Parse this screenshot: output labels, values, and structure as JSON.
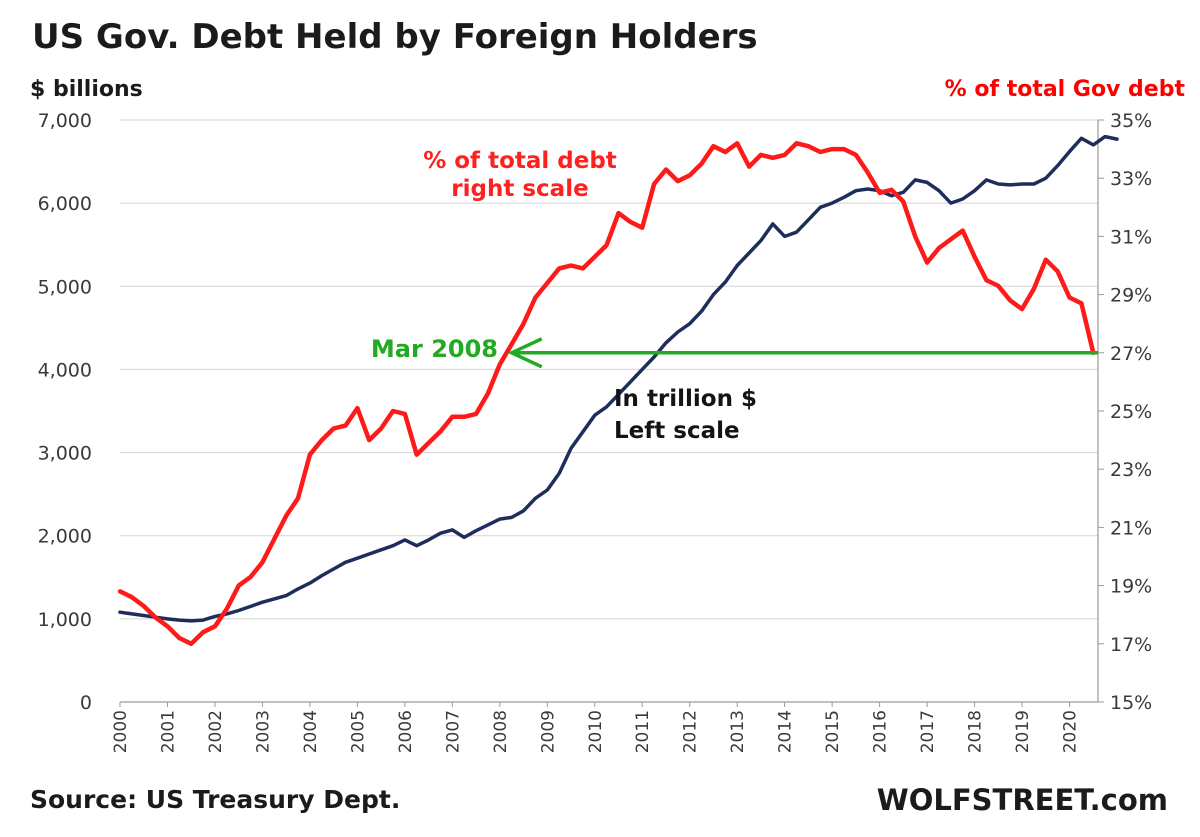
{
  "chart_data": {
    "type": "line",
    "title": "US Gov. Debt Held by Foreign Holders",
    "ylabel_left": "$ billions",
    "ylabel_right": "% of total Gov debt",
    "yticks_left": [
      "0",
      "1,000",
      "2,000",
      "3,000",
      "4,000",
      "5,000",
      "6,000",
      "7,000"
    ],
    "yticks_right": [
      "15%",
      "17%",
      "19%",
      "21%",
      "23%",
      "25%",
      "27%",
      "29%",
      "31%",
      "33%",
      "35%"
    ],
    "xticks": [
      "2000",
      "2001",
      "2002",
      "2003",
      "2004",
      "2005",
      "2006",
      "2007",
      "2008",
      "2009",
      "2010",
      "2011",
      "2012",
      "2013",
      "2014",
      "2015",
      "2016",
      "2017",
      "2018",
      "2019",
      "2020"
    ],
    "ylim_left": [
      0,
      7000
    ],
    "ylim_right": [
      15,
      35
    ],
    "xlim": [
      2000,
      2020.6
    ],
    "grid": "horizontal",
    "series": [
      {
        "axis": "left",
        "color": "#1f2d5c",
        "points": [
          [
            2000.0,
            1080
          ],
          [
            2000.25,
            1060
          ],
          [
            2000.5,
            1040
          ],
          [
            2000.75,
            1020
          ],
          [
            2001.0,
            1000
          ],
          [
            2001.25,
            985
          ],
          [
            2001.5,
            975
          ],
          [
            2001.75,
            985
          ],
          [
            2002.0,
            1030
          ],
          [
            2002.25,
            1060
          ],
          [
            2002.5,
            1100
          ],
          [
            2002.75,
            1150
          ],
          [
            2003.0,
            1200
          ],
          [
            2003.25,
            1240
          ],
          [
            2003.5,
            1280
          ],
          [
            2003.75,
            1360
          ],
          [
            2004.0,
            1430
          ],
          [
            2004.25,
            1520
          ],
          [
            2004.5,
            1600
          ],
          [
            2004.75,
            1680
          ],
          [
            2005.0,
            1730
          ],
          [
            2005.25,
            1780
          ],
          [
            2005.5,
            1830
          ],
          [
            2005.75,
            1880
          ],
          [
            2006.0,
            1950
          ],
          [
            2006.25,
            1880
          ],
          [
            2006.5,
            1950
          ],
          [
            2006.75,
            2030
          ],
          [
            2007.0,
            2070
          ],
          [
            2007.25,
            1980
          ],
          [
            2007.5,
            2060
          ],
          [
            2007.75,
            2130
          ],
          [
            2008.0,
            2200
          ],
          [
            2008.25,
            2220
          ],
          [
            2008.5,
            2300
          ],
          [
            2008.75,
            2450
          ],
          [
            2009.0,
            2550
          ],
          [
            2009.25,
            2750
          ],
          [
            2009.5,
            3050
          ],
          [
            2009.75,
            3250
          ],
          [
            2010.0,
            3450
          ],
          [
            2010.25,
            3550
          ],
          [
            2010.5,
            3700
          ],
          [
            2010.75,
            3850
          ],
          [
            2011.0,
            4000
          ],
          [
            2011.25,
            4150
          ],
          [
            2011.5,
            4320
          ],
          [
            2011.75,
            4450
          ],
          [
            2012.0,
            4550
          ],
          [
            2012.25,
            4700
          ],
          [
            2012.5,
            4900
          ],
          [
            2012.75,
            5050
          ],
          [
            2013.0,
            5250
          ],
          [
            2013.25,
            5400
          ],
          [
            2013.5,
            5550
          ],
          [
            2013.75,
            5750
          ],
          [
            2014.0,
            5600
          ],
          [
            2014.25,
            5650
          ],
          [
            2014.5,
            5800
          ],
          [
            2014.75,
            5950
          ],
          [
            2015.0,
            6000
          ],
          [
            2015.25,
            6070
          ],
          [
            2015.5,
            6150
          ],
          [
            2015.75,
            6170
          ],
          [
            2016.0,
            6150
          ],
          [
            2016.25,
            6090
          ],
          [
            2016.5,
            6130
          ],
          [
            2016.75,
            6280
          ],
          [
            2017.0,
            6250
          ],
          [
            2017.25,
            6150
          ],
          [
            2017.5,
            6000
          ],
          [
            2017.75,
            6050
          ],
          [
            2018.0,
            6150
          ],
          [
            2018.25,
            6280
          ],
          [
            2018.5,
            6230
          ],
          [
            2018.75,
            6220
          ],
          [
            2019.0,
            6230
          ],
          [
            2019.25,
            6230
          ],
          [
            2019.5,
            6300
          ],
          [
            2019.75,
            6450
          ],
          [
            2020.0,
            6620
          ],
          [
            2020.25,
            6780
          ],
          [
            2020.5,
            6700
          ],
          [
            2020.75,
            6800
          ],
          [
            2021.0,
            6770
          ]
        ]
      },
      {
        "axis": "right",
        "color": "#ff1a1a",
        "points": [
          [
            2000.0,
            18.8
          ],
          [
            2000.25,
            18.6
          ],
          [
            2000.5,
            18.3
          ],
          [
            2000.75,
            17.9
          ],
          [
            2001.0,
            17.6
          ],
          [
            2001.25,
            17.2
          ],
          [
            2001.5,
            17.0
          ],
          [
            2001.75,
            17.4
          ],
          [
            2002.0,
            17.6
          ],
          [
            2002.25,
            18.2
          ],
          [
            2002.5,
            19.0
          ],
          [
            2002.75,
            19.3
          ],
          [
            2003.0,
            19.8
          ],
          [
            2003.25,
            20.6
          ],
          [
            2003.5,
            21.4
          ],
          [
            2003.75,
            22.0
          ],
          [
            2004.0,
            23.5
          ],
          [
            2004.25,
            24.0
          ],
          [
            2004.5,
            24.4
          ],
          [
            2004.75,
            24.5
          ],
          [
            2005.0,
            25.1
          ],
          [
            2005.25,
            24.0
          ],
          [
            2005.5,
            24.4
          ],
          [
            2005.75,
            25.0
          ],
          [
            2006.0,
            24.9
          ],
          [
            2006.25,
            23.5
          ],
          [
            2006.5,
            23.9
          ],
          [
            2006.75,
            24.3
          ],
          [
            2007.0,
            24.8
          ],
          [
            2007.25,
            24.8
          ],
          [
            2007.5,
            24.9
          ],
          [
            2007.75,
            25.6
          ],
          [
            2008.0,
            26.6
          ],
          [
            2008.25,
            27.3
          ],
          [
            2008.5,
            28.0
          ],
          [
            2008.75,
            28.9
          ],
          [
            2009.0,
            29.4
          ],
          [
            2009.25,
            29.9
          ],
          [
            2009.5,
            30.0
          ],
          [
            2009.75,
            29.9
          ],
          [
            2010.0,
            30.3
          ],
          [
            2010.25,
            30.7
          ],
          [
            2010.5,
            31.8
          ],
          [
            2010.75,
            31.5
          ],
          [
            2011.0,
            31.3
          ],
          [
            2011.25,
            32.8
          ],
          [
            2011.5,
            33.3
          ],
          [
            2011.75,
            32.9
          ],
          [
            2012.0,
            33.1
          ],
          [
            2012.25,
            33.5
          ],
          [
            2012.5,
            34.1
          ],
          [
            2012.75,
            33.9
          ],
          [
            2013.0,
            34.2
          ],
          [
            2013.25,
            33.4
          ],
          [
            2013.5,
            33.8
          ],
          [
            2013.75,
            33.7
          ],
          [
            2014.0,
            33.8
          ],
          [
            2014.25,
            34.2
          ],
          [
            2014.5,
            34.1
          ],
          [
            2014.75,
            33.9
          ],
          [
            2015.0,
            34.0
          ],
          [
            2015.25,
            34.0
          ],
          [
            2015.5,
            33.8
          ],
          [
            2015.75,
            33.2
          ],
          [
            2016.0,
            32.5
          ],
          [
            2016.25,
            32.6
          ],
          [
            2016.5,
            32.2
          ],
          [
            2016.75,
            31.0
          ],
          [
            2017.0,
            30.1
          ],
          [
            2017.25,
            30.6
          ],
          [
            2017.5,
            30.9
          ],
          [
            2017.75,
            31.2
          ],
          [
            2018.0,
            30.3
          ],
          [
            2018.25,
            29.5
          ],
          [
            2018.5,
            29.3
          ],
          [
            2018.75,
            28.8
          ],
          [
            2019.0,
            28.5
          ],
          [
            2019.25,
            29.2
          ],
          [
            2019.5,
            30.2
          ],
          [
            2019.75,
            29.8
          ],
          [
            2020.0,
            28.9
          ],
          [
            2020.25,
            28.7
          ],
          [
            2020.5,
            27.0
          ]
        ]
      }
    ],
    "annotations": {
      "pct_label_line1": "% of total debt",
      "pct_label_line2": "right scale",
      "dollar_label_line1": "In trillion $",
      "dollar_label_line2": "Left scale",
      "marker_label": "Mar 2008",
      "marker_level_pct": 27,
      "marker_arrow_from_x": 2021.0,
      "marker_arrow_to_x": 2008.25,
      "marker_color": "#22aa22"
    }
  },
  "footer": {
    "source": "Source: US Treasury Dept.",
    "brand": "WOLFSTREET.com"
  }
}
